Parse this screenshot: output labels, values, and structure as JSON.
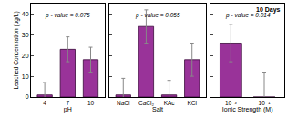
{
  "chart_data": [
    {
      "type": "bar",
      "ylabel": "Leached Concentration (μg/L)",
      "xlabel": "pH",
      "categories": [
        "4",
        "7",
        "10"
      ],
      "values": [
        1,
        23,
        18
      ],
      "errors": [
        6,
        6,
        6
      ],
      "color": "#993399",
      "ylim": [
        0,
        45
      ],
      "yticks": [
        0,
        10,
        20,
        30,
        40
      ],
      "annotations": [
        "p - value = 0.075"
      ]
    },
    {
      "type": "bar",
      "xlabel": "Salt",
      "categories": [
        "NaCl",
        "CaCl₂",
        "KAc",
        "KCl"
      ],
      "values": [
        1,
        34,
        1,
        18
      ],
      "errors": [
        8,
        8,
        7,
        8
      ],
      "color": "#993399",
      "ylim": [
        0,
        45
      ],
      "yticks": [
        0,
        10,
        20,
        30,
        40
      ],
      "tick_labels": "x",
      "annotations": [
        "p - value = 0.055"
      ]
    },
    {
      "type": "bar",
      "title": "10 Days",
      "xlabel": "Ionic Strength (M)",
      "categories": [
        "10⁻³",
        "10⁻¹"
      ],
      "values": [
        26,
        0
      ],
      "errors": [
        9,
        12
      ],
      "color": "#993399",
      "ylim": [
        0,
        45
      ],
      "yticks": [
        0,
        10,
        20,
        30,
        40
      ],
      "tick_labels": "x",
      "annotations": [
        "p - value = 0.014"
      ]
    }
  ]
}
